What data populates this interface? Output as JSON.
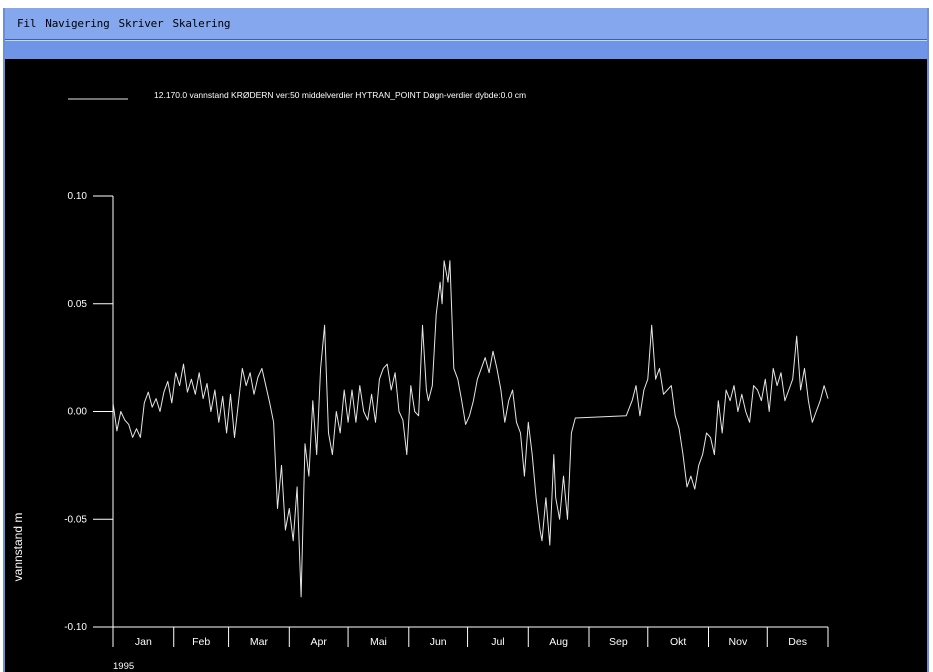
{
  "menu": {
    "items": [
      "Fil",
      "Navigering",
      "Skriver",
      "Skalering"
    ]
  },
  "colors": {
    "menubar": "#85a7ee",
    "strip": "#6f95e6",
    "plot_bg": "#000000",
    "line": "#e6e6e6"
  },
  "chart_data": {
    "type": "line",
    "legend": "12.170.0 vannstand KRØDERN ver:50 middelverdier HYTRAN_POINT Døgn-verdier dybde:0.0 cm",
    "ylabel": "vannstand  m",
    "year_label": "1995",
    "ylim": [
      -0.1,
      0.1
    ],
    "xlim": [
      0,
      365
    ],
    "yticks": [
      0.1,
      0.05,
      0.0,
      -0.05,
      -0.1
    ],
    "ytick_labels": [
      "0.10",
      "0.05",
      "0.00",
      "-0.05",
      "-0.10"
    ],
    "month_labels": [
      "Jan",
      "Feb",
      "Mar",
      "Apr",
      "Mai",
      "Jun",
      "Jul",
      "Aug",
      "Sep",
      "Okt",
      "Nov",
      "Des"
    ],
    "month_starts": [
      0,
      31,
      59,
      90,
      120,
      151,
      181,
      212,
      243,
      273,
      304,
      334,
      365
    ],
    "series": [
      {
        "points": [
          [
            0,
            0.004
          ],
          [
            2,
            -0.009
          ],
          [
            4,
            0.0
          ],
          [
            6,
            -0.004
          ],
          [
            8,
            -0.006
          ],
          [
            10,
            -0.012
          ],
          [
            12,
            -0.008
          ],
          [
            14,
            -0.012
          ],
          [
            16,
            0.004
          ],
          [
            18,
            0.009
          ],
          [
            20,
            0.002
          ],
          [
            22,
            0.006
          ],
          [
            24,
            0.0
          ],
          [
            26,
            0.009
          ],
          [
            28,
            0.014
          ],
          [
            30,
            0.004
          ],
          [
            32,
            0.018
          ],
          [
            34,
            0.012
          ],
          [
            36,
            0.022
          ],
          [
            38,
            0.009
          ],
          [
            40,
            0.015
          ],
          [
            42,
            0.008
          ],
          [
            44,
            0.018
          ],
          [
            46,
            0.006
          ],
          [
            48,
            0.013
          ],
          [
            50,
            0.0
          ],
          [
            52,
            0.01
          ],
          [
            54,
            -0.005
          ],
          [
            56,
            0.007
          ],
          [
            58,
            -0.01
          ],
          [
            60,
            0.008
          ],
          [
            62,
            -0.012
          ],
          [
            64,
            0.004
          ],
          [
            66,
            0.02
          ],
          [
            68,
            0.012
          ],
          [
            70,
            0.018
          ],
          [
            72,
            0.008
          ],
          [
            74,
            0.016
          ],
          [
            76,
            0.02
          ],
          [
            78,
            0.012
          ],
          [
            80,
            0.004
          ],
          [
            82,
            -0.005
          ],
          [
            84,
            -0.045
          ],
          [
            86,
            -0.025
          ],
          [
            88,
            -0.055
          ],
          [
            90,
            -0.045
          ],
          [
            92,
            -0.06
          ],
          [
            94,
            -0.035
          ],
          [
            96,
            -0.086
          ],
          [
            98,
            -0.015
          ],
          [
            100,
            -0.03
          ],
          [
            102,
            0.005
          ],
          [
            104,
            -0.02
          ],
          [
            106,
            0.02
          ],
          [
            108,
            0.04
          ],
          [
            110,
            -0.01
          ],
          [
            112,
            -0.02
          ],
          [
            114,
            0.0
          ],
          [
            116,
            -0.01
          ],
          [
            118,
            0.01
          ],
          [
            120,
            -0.005
          ],
          [
            122,
            0.01
          ],
          [
            124,
            -0.005
          ],
          [
            126,
            0.012
          ],
          [
            128,
            0.0
          ],
          [
            130,
            -0.004
          ],
          [
            132,
            0.008
          ],
          [
            134,
            -0.005
          ],
          [
            136,
            0.015
          ],
          [
            138,
            0.02
          ],
          [
            140,
            0.022
          ],
          [
            142,
            0.01
          ],
          [
            144,
            0.018
          ],
          [
            146,
            0.0
          ],
          [
            148,
            -0.004
          ],
          [
            150,
            -0.02
          ],
          [
            152,
            0.012
          ],
          [
            154,
            0.0
          ],
          [
            156,
            -0.002
          ],
          [
            158,
            0.04
          ],
          [
            160,
            0.01
          ],
          [
            161,
            0.005
          ],
          [
            163,
            0.012
          ],
          [
            165,
            0.045
          ],
          [
            167,
            0.06
          ],
          [
            168,
            0.05
          ],
          [
            169,
            0.07
          ],
          [
            171,
            0.06
          ],
          [
            172,
            0.07
          ],
          [
            174,
            0.02
          ],
          [
            176,
            0.015
          ],
          [
            178,
            0.005
          ],
          [
            180,
            -0.006
          ],
          [
            182,
            -0.002
          ],
          [
            184,
            0.005
          ],
          [
            186,
            0.015
          ],
          [
            188,
            0.02
          ],
          [
            190,
            0.025
          ],
          [
            192,
            0.018
          ],
          [
            194,
            0.028
          ],
          [
            196,
            0.02
          ],
          [
            198,
            0.01
          ],
          [
            200,
            -0.005
          ],
          [
            202,
            0.005
          ],
          [
            204,
            0.01
          ],
          [
            206,
            -0.005
          ],
          [
            208,
            -0.01
          ],
          [
            210,
            -0.03
          ],
          [
            212,
            -0.005
          ],
          [
            214,
            -0.02
          ],
          [
            216,
            -0.04
          ],
          [
            218,
            -0.055
          ],
          [
            219,
            -0.06
          ],
          [
            221,
            -0.04
          ],
          [
            223,
            -0.062
          ],
          [
            225,
            -0.02
          ],
          [
            226,
            -0.04
          ],
          [
            228,
            -0.05
          ],
          [
            230,
            -0.03
          ],
          [
            232,
            -0.05
          ],
          [
            234,
            -0.01
          ],
          [
            236,
            -0.003
          ],
          [
            262,
            -0.002
          ],
          [
            265,
            0.005
          ],
          [
            267,
            0.012
          ],
          [
            269,
            -0.002
          ],
          [
            271,
            0.01
          ],
          [
            273,
            0.015
          ],
          [
            275,
            0.04
          ],
          [
            277,
            0.015
          ],
          [
            279,
            0.02
          ],
          [
            281,
            0.008
          ],
          [
            283,
            0.01
          ],
          [
            285,
            0.012
          ],
          [
            287,
            -0.002
          ],
          [
            289,
            -0.008
          ],
          [
            291,
            -0.02
          ],
          [
            293,
            -0.035
          ],
          [
            295,
            -0.03
          ],
          [
            297,
            -0.036
          ],
          [
            299,
            -0.025
          ],
          [
            301,
            -0.02
          ],
          [
            303,
            -0.01
          ],
          [
            305,
            -0.012
          ],
          [
            307,
            -0.02
          ],
          [
            309,
            0.005
          ],
          [
            311,
            -0.01
          ],
          [
            313,
            0.01
          ],
          [
            315,
            0.005
          ],
          [
            317,
            0.012
          ],
          [
            319,
            0.0
          ],
          [
            321,
            0.008
          ],
          [
            323,
            0.0
          ],
          [
            325,
            -0.005
          ],
          [
            327,
            0.012
          ],
          [
            329,
            0.01
          ],
          [
            331,
            0.005
          ],
          [
            333,
            0.015
          ],
          [
            335,
            0.0
          ],
          [
            337,
            0.02
          ],
          [
            339,
            0.012
          ],
          [
            341,
            0.018
          ],
          [
            343,
            0.005
          ],
          [
            345,
            0.01
          ],
          [
            347,
            0.015
          ],
          [
            349,
            0.035
          ],
          [
            351,
            0.01
          ],
          [
            353,
            0.02
          ],
          [
            355,
            0.005
          ],
          [
            357,
            -0.005
          ],
          [
            359,
            0.0
          ],
          [
            361,
            0.005
          ],
          [
            363,
            0.012
          ],
          [
            365,
            0.006
          ]
        ]
      }
    ]
  }
}
